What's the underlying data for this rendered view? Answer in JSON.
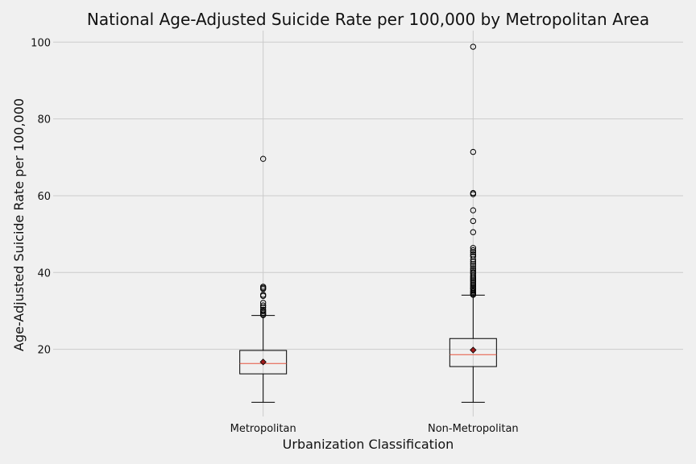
{
  "chart_data": {
    "type": "box",
    "title": "National Age-Adjusted Suicide Rate per 100,000 by Metropolitan Area",
    "xlabel": "Urbanization Classification",
    "ylabel": "Age-Adjusted Suicide Rate per 100,000",
    "ylim": [
      2.5,
      103
    ],
    "yticks": [
      20,
      40,
      60,
      80,
      100
    ],
    "grid": true,
    "colors": {
      "background": "#f0f0f0",
      "grid": "#cbcbcb",
      "box": "#000000",
      "median": "#e5533d",
      "mean_marker": "#a01c1c"
    },
    "categories": [
      "Metropolitan",
      "Non-Metropolitan"
    ],
    "series": [
      {
        "category": "Metropolitan",
        "whisker_low": 6.2,
        "q1": 13.6,
        "median": 16.3,
        "q3": 19.7,
        "whisker_high": 28.8,
        "mean": 16.7,
        "outliers": [
          69.6,
          36.3,
          36.0,
          35.7,
          34.2,
          33.9,
          32.1,
          31.4,
          30.9,
          30.3,
          29.9,
          29.5,
          29.1,
          28.9
        ]
      },
      {
        "category": "Non-Metropolitan",
        "whisker_low": 6.2,
        "q1": 15.5,
        "median": 18.6,
        "q3": 22.8,
        "whisker_high": 34.1,
        "mean": 19.8,
        "outliers": [
          98.8,
          71.4,
          60.7,
          60.4,
          56.2,
          53.4,
          50.5,
          46.4,
          45.8,
          45.3,
          44.7,
          44.2,
          43.4,
          42.8,
          42.2,
          41.7,
          41.1,
          40.6,
          40.1,
          39.7,
          39.2,
          38.8,
          38.4,
          38.0,
          37.6,
          37.2,
          36.8,
          36.4,
          36.0,
          35.7,
          35.3,
          35.0,
          34.7,
          34.4,
          34.2
        ]
      }
    ]
  }
}
